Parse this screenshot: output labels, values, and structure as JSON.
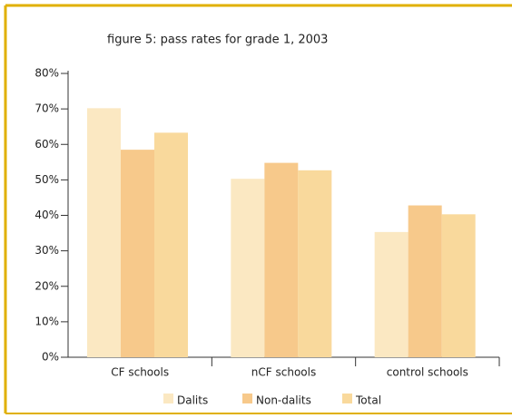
{
  "chart_data": {
    "type": "bar",
    "title": "figure 5: pass rates for grade 1, 2003",
    "categories": [
      "CF schools",
      "nCF schools",
      "control schools"
    ],
    "series": [
      {
        "name": "Dalits",
        "color": "#fbe8c2",
        "values": [
          70.2,
          50.3,
          35.3
        ]
      },
      {
        "name": "Non-dalits",
        "color": "#f7c98b",
        "values": [
          58.5,
          54.8,
          42.8
        ]
      },
      {
        "name": "Total",
        "color": "#f9d99c",
        "values": [
          63.3,
          52.7,
          40.3
        ]
      }
    ],
    "ylim": [
      0,
      80
    ],
    "yticks": [
      {
        "value": 0,
        "label": "0%"
      },
      {
        "value": 10,
        "label": "10%"
      },
      {
        "value": 20,
        "label": "20%"
      },
      {
        "value": 30,
        "label": "30%"
      },
      {
        "value": 40,
        "label": "40%"
      },
      {
        "value": 50,
        "label": "50%"
      },
      {
        "value": 60,
        "label": "60%"
      },
      {
        "value": 70,
        "label": "70%"
      },
      {
        "value": 80,
        "label": "80%"
      }
    ],
    "legend": "bottom"
  }
}
